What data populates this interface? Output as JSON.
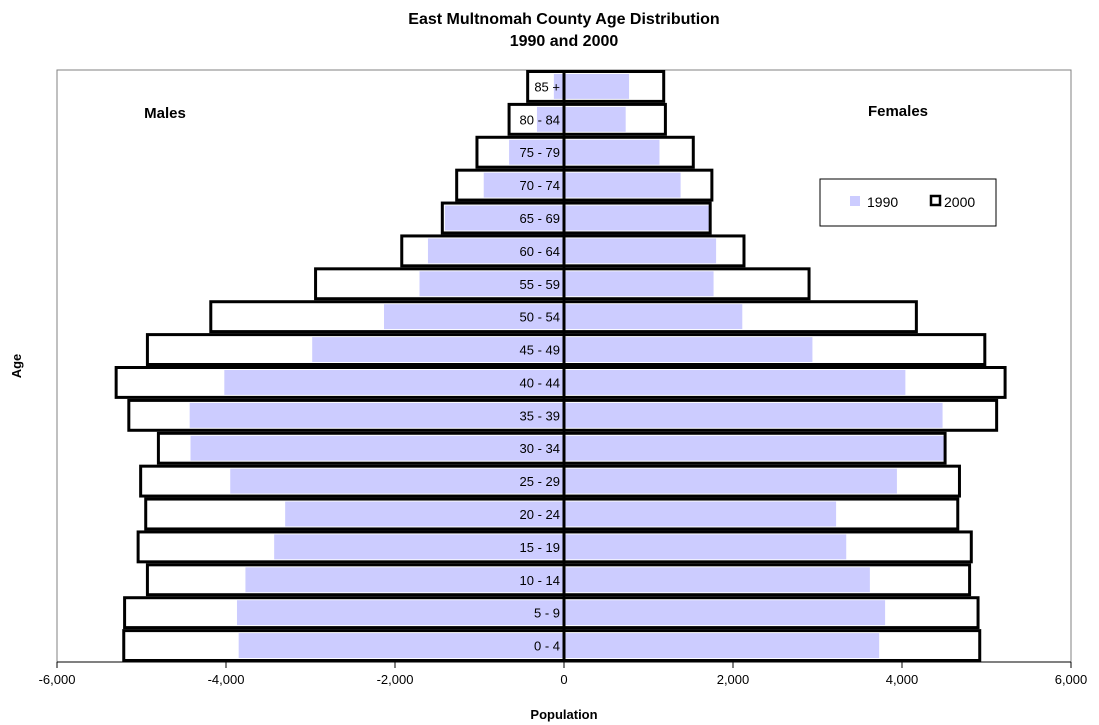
{
  "chart_data": {
    "type": "bar",
    "orientation": "horizontal",
    "title": "East Multnomah County Age Distribution",
    "subtitle": "1990 and 2000",
    "xlabel": "Population",
    "ylabel": "Age",
    "xlim": [
      -6000,
      6000
    ],
    "xticks": [
      -6000,
      -4000,
      -2000,
      0,
      2000,
      4000,
      6000
    ],
    "xtick_labels": [
      "-6,000",
      "-4,000",
      "-2,000",
      "0",
      "2,000",
      "4,000",
      "6,000"
    ],
    "grid": false,
    "legend_position": "right",
    "side_labels": {
      "left": "Males",
      "right": "Females"
    },
    "categories": [
      "0 - 4",
      "5 - 9",
      "10 - 14",
      "15 - 19",
      "20 - 24",
      "25 - 29",
      "30 - 34",
      "35 - 39",
      "40 - 44",
      "45 - 49",
      "50 - 54",
      "55 - 59",
      "60 - 64",
      "65 - 69",
      "70 - 74",
      "75 - 79",
      "80 - 84",
      "85 +"
    ],
    "series": [
      {
        "name": "1990",
        "style": "filled",
        "color": "#ccccff",
        "male": [
          -3850,
          -3870,
          -3770,
          -3430,
          -3300,
          -3950,
          -4420,
          -4430,
          -4020,
          -2980,
          -2130,
          -1710,
          -1610,
          -1410,
          -950,
          -650,
          -320,
          -120
        ],
        "female": [
          3730,
          3800,
          3620,
          3340,
          3220,
          3940,
          4520,
          4480,
          4040,
          2940,
          2110,
          1770,
          1800,
          1730,
          1380,
          1130,
          730,
          770
        ]
      },
      {
        "name": "2000",
        "style": "outline",
        "color": "#000000",
        "male": [
          -5210,
          -5200,
          -4930,
          -5040,
          -4950,
          -5010,
          -4800,
          -5150,
          -5300,
          -4930,
          -4180,
          -2940,
          -1920,
          -1440,
          -1270,
          -1030,
          -650,
          -430
        ],
        "female": [
          4920,
          4900,
          4800,
          4820,
          4660,
          4680,
          4510,
          5120,
          5220,
          4980,
          4170,
          2900,
          2130,
          1730,
          1750,
          1530,
          1200,
          1180
        ]
      }
    ]
  }
}
